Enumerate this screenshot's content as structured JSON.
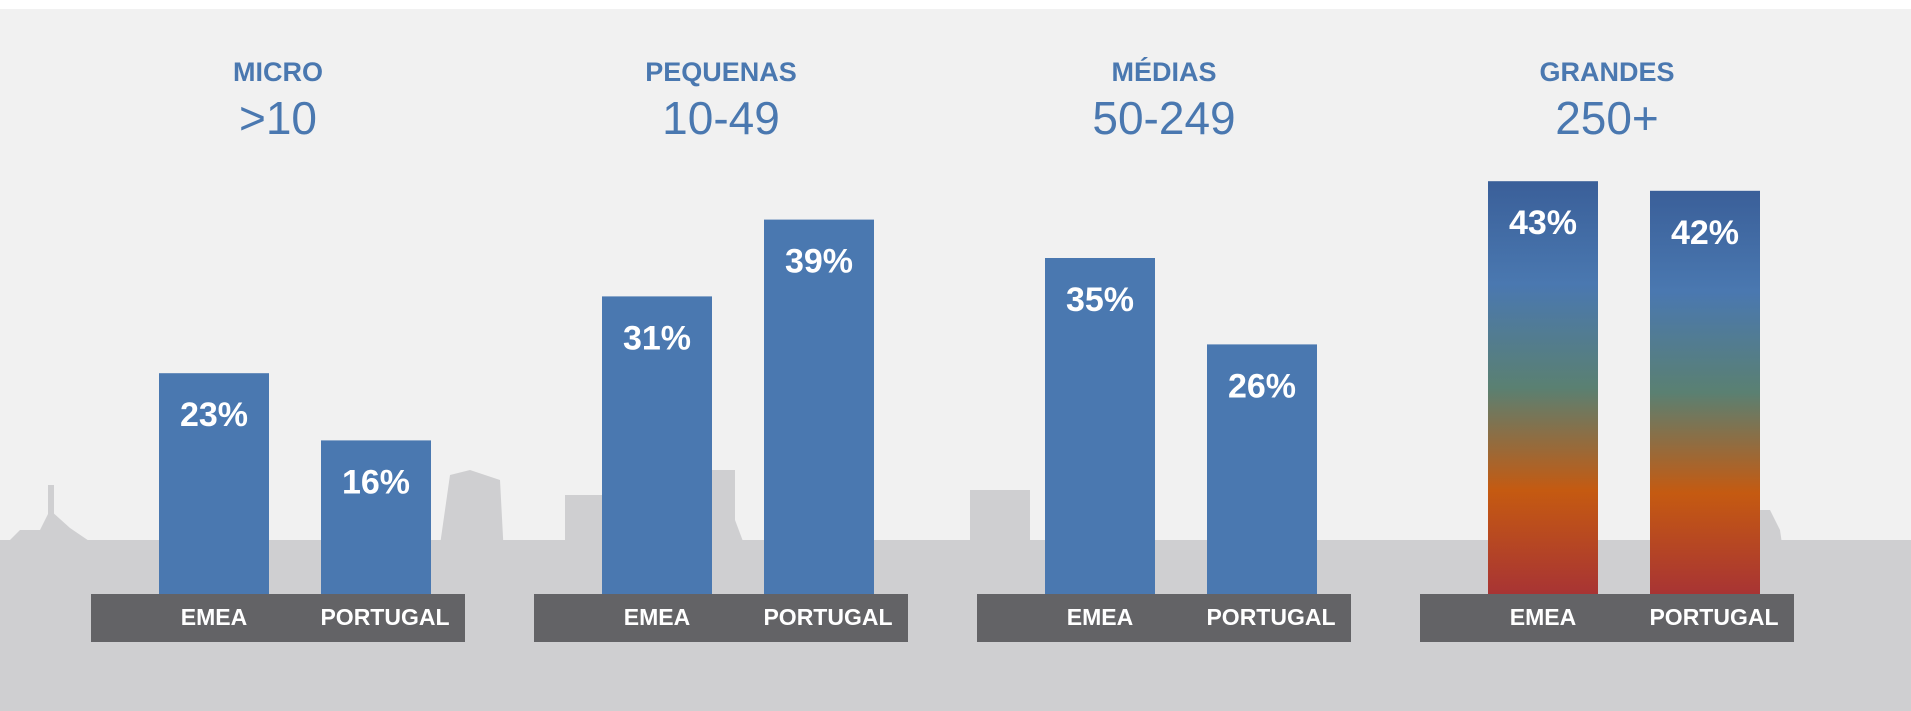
{
  "chart_data": [
    {
      "type": "bar",
      "title": "MICRO",
      "subtitle": ">10",
      "categories": [
        "EMEA",
        "PORTUGAL"
      ],
      "values": [
        23,
        16
      ],
      "value_labels": [
        "23%",
        "16%"
      ],
      "color": "#4a78b0"
    },
    {
      "type": "bar",
      "title": "PEQUENAS",
      "subtitle": "10-49",
      "categories": [
        "EMEA",
        "PORTUGAL"
      ],
      "values": [
        31,
        39
      ],
      "value_labels": [
        "31%",
        "39%"
      ],
      "color": "#4a78b0"
    },
    {
      "type": "bar",
      "title": "MÉDIAS",
      "subtitle": "50-249",
      "categories": [
        "EMEA",
        "PORTUGAL"
      ],
      "values": [
        35,
        26
      ],
      "value_labels": [
        "35%",
        "26%"
      ],
      "color": "#4a78b0"
    },
    {
      "type": "bar",
      "title": "GRANDES",
      "subtitle": "250+",
      "categories": [
        "EMEA",
        "PORTUGAL"
      ],
      "values": [
        43,
        42
      ],
      "value_labels": [
        "43%",
        "42%"
      ],
      "color": "#4a78b0",
      "gradient": [
        "#3a5f99",
        "#4a78b0",
        "#5a8072",
        "#c55a11",
        "#a83434"
      ]
    }
  ]
}
